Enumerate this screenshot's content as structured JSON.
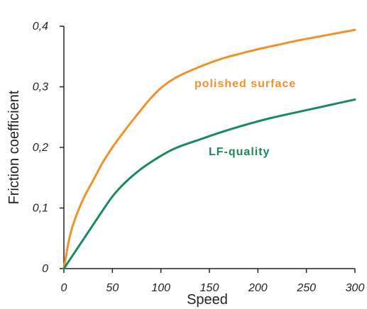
{
  "chart_data": {
    "type": "line",
    "title": "",
    "xlabel": "Speed",
    "ylabel": "Friction coefficient",
    "xlim": [
      0,
      300
    ],
    "ylim": [
      0,
      0.4
    ],
    "x_ticks": [
      0,
      50,
      100,
      150,
      200,
      250,
      300
    ],
    "x_tick_labels": [
      "0",
      "50",
      "100",
      "150",
      "200",
      "250",
      "300"
    ],
    "y_ticks": [
      0,
      0.1,
      0.2,
      0.3,
      0.4
    ],
    "y_tick_labels": [
      "0",
      "0,1",
      "0,2",
      "0,3",
      "0,4"
    ],
    "grid": false,
    "legend": "none",
    "series": [
      {
        "name": "polished surface",
        "color": "#f0912a",
        "x": [
          0,
          5,
          10,
          20,
          30,
          40,
          50,
          60,
          70,
          80,
          90,
          100,
          110,
          120,
          140,
          160,
          180,
          200,
          220,
          240,
          260,
          280,
          300
        ],
        "y": [
          0,
          0.045,
          0.075,
          0.115,
          0.145,
          0.175,
          0.2,
          0.222,
          0.243,
          0.263,
          0.282,
          0.298,
          0.31,
          0.319,
          0.333,
          0.345,
          0.354,
          0.362,
          0.369,
          0.376,
          0.382,
          0.388,
          0.394
        ]
      },
      {
        "name": "LF-quality",
        "color": "#1a8a5c",
        "x": [
          0,
          10,
          20,
          30,
          40,
          50,
          60,
          70,
          80,
          90,
          100,
          110,
          120,
          140,
          160,
          180,
          200,
          220,
          240,
          260,
          280,
          300
        ],
        "y": [
          0,
          0.024,
          0.048,
          0.072,
          0.096,
          0.119,
          0.137,
          0.152,
          0.165,
          0.176,
          0.186,
          0.195,
          0.202,
          0.213,
          0.224,
          0.234,
          0.243,
          0.251,
          0.258,
          0.265,
          0.272,
          0.279
        ]
      }
    ],
    "annotations": [
      "polished surface",
      "LF-quality"
    ]
  }
}
